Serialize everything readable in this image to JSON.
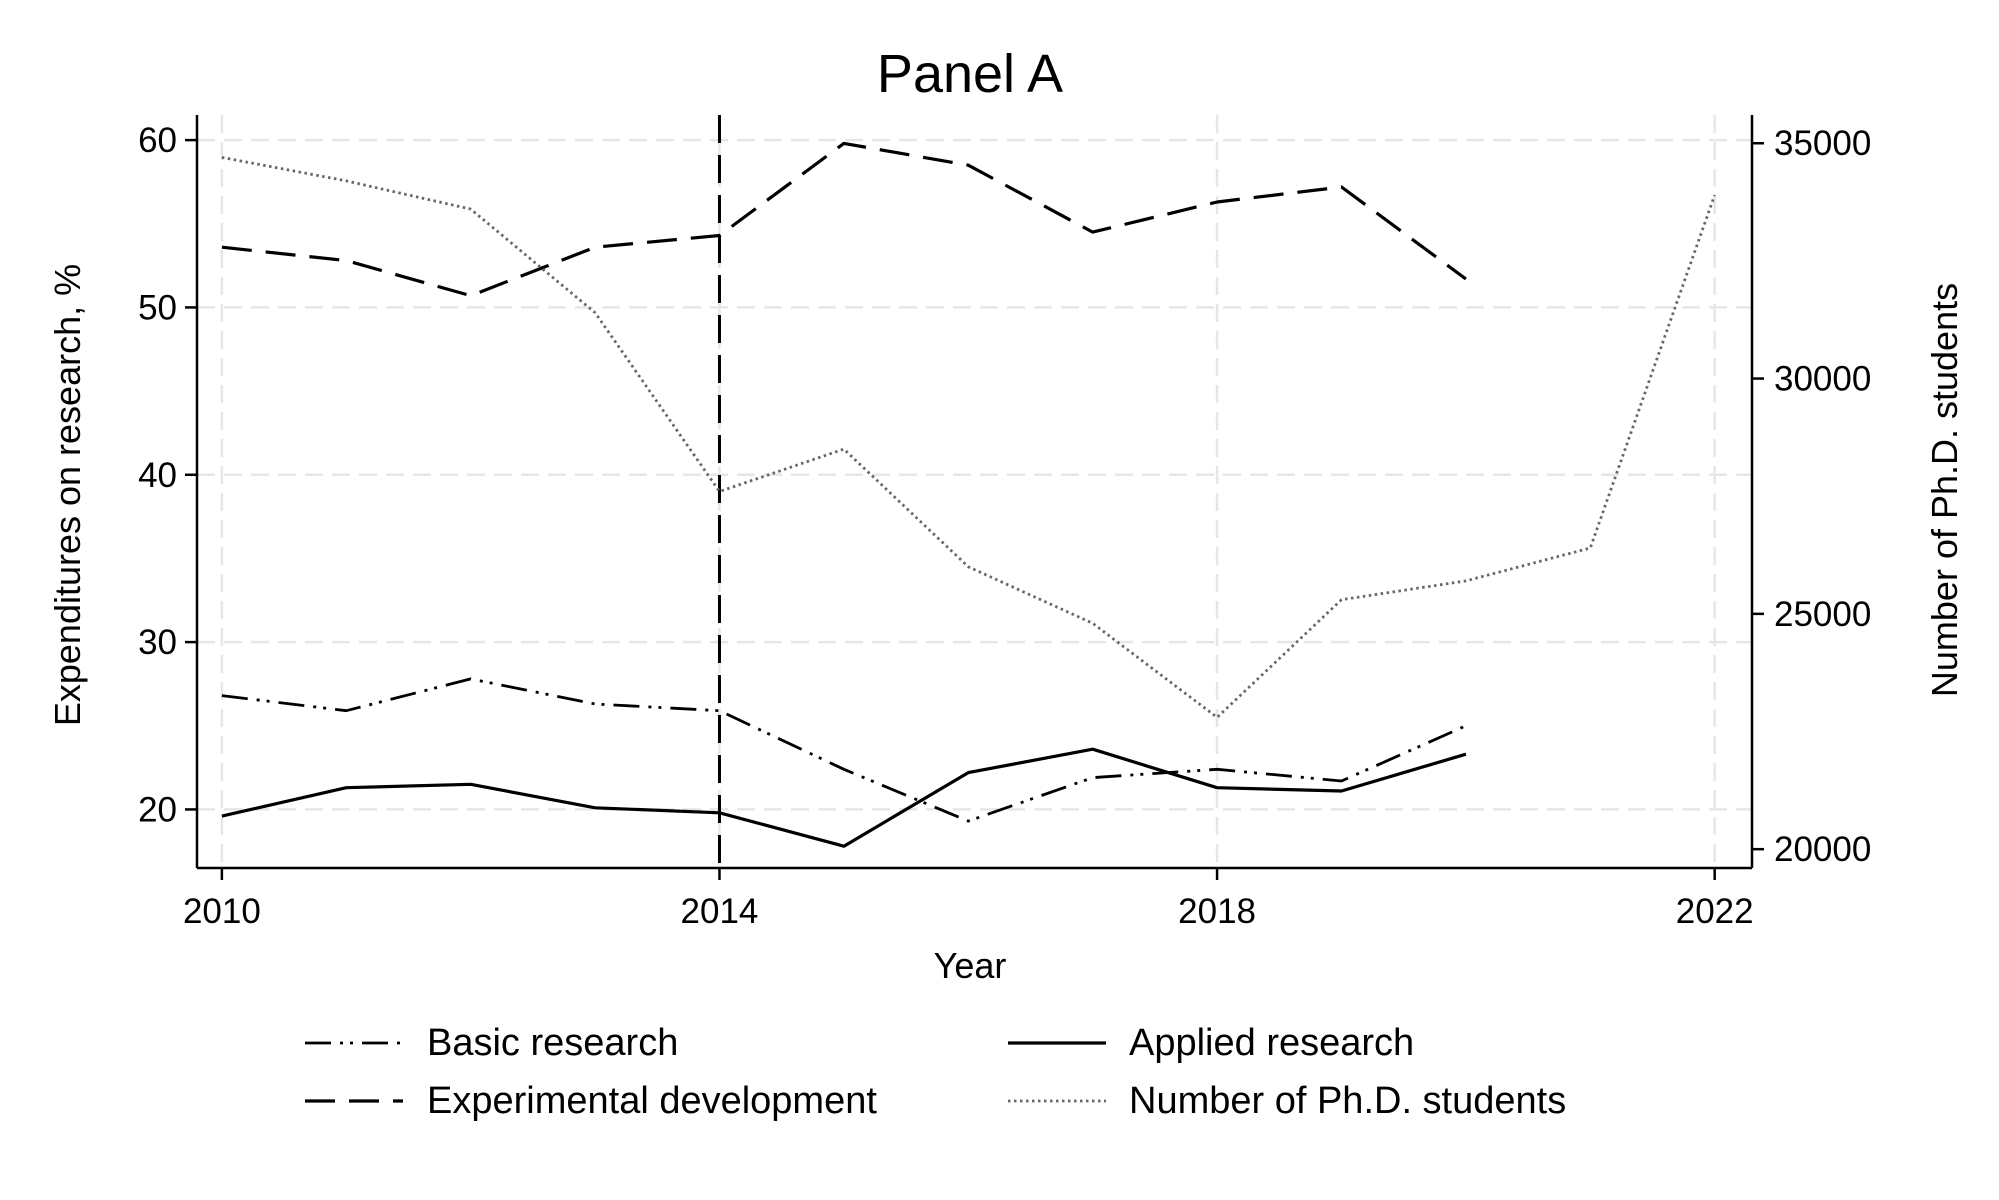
{
  "chart_data": {
    "type": "line",
    "title": "Panel A",
    "xlabel": "Year",
    "ylabel": "Expenditures on research, %",
    "y2label": "Number of Ph.D. students",
    "xlim": [
      2009.8,
      2022.3
    ],
    "ylim": [
      16.5,
      61.5
    ],
    "y2lim": [
      19600,
      35600
    ],
    "xticks": [
      2010,
      2014,
      2018,
      2022
    ],
    "yticks": [
      20,
      30,
      40,
      50,
      60
    ],
    "y2ticks": [
      20000,
      25000,
      30000,
      35000
    ],
    "grid": true,
    "legend_position": "bottom",
    "vline": {
      "x": 2014,
      "style": "dashed"
    },
    "series": [
      {
        "name": "Basic research",
        "axis": "left",
        "style": "dash-dot-dot",
        "x": [
          2010,
          2011,
          2012,
          2013,
          2014,
          2015,
          2016,
          2017,
          2018,
          2019,
          2020
        ],
        "values": [
          26.8,
          25.9,
          27.8,
          26.3,
          25.9,
          22.4,
          19.3,
          21.9,
          22.4,
          21.7,
          25.0
        ]
      },
      {
        "name": "Applied research",
        "axis": "left",
        "style": "solid",
        "x": [
          2010,
          2011,
          2012,
          2013,
          2014,
          2015,
          2016,
          2017,
          2018,
          2019,
          2020
        ],
        "values": [
          19.6,
          21.3,
          21.5,
          20.1,
          19.8,
          17.8,
          22.2,
          23.6,
          21.3,
          21.1,
          23.3
        ]
      },
      {
        "name": "Experimental development",
        "axis": "left",
        "style": "dashed",
        "x": [
          2010,
          2011,
          2012,
          2013,
          2014,
          2015,
          2016,
          2017,
          2018,
          2019,
          2020
        ],
        "values": [
          53.6,
          52.8,
          50.7,
          53.6,
          54.3,
          59.8,
          58.5,
          54.5,
          56.3,
          57.2,
          51.7
        ]
      },
      {
        "name": "Number of Ph.D. students",
        "axis": "right",
        "style": "dotted",
        "x": [
          2010,
          2011,
          2012,
          2013,
          2014,
          2015,
          2016,
          2017,
          2018,
          2019,
          2020,
          2021,
          2022
        ],
        "values": [
          34700,
          34200,
          33600,
          31400,
          27600,
          28500,
          26000,
          24800,
          22800,
          25300,
          25700,
          26400,
          33900
        ]
      }
    ]
  }
}
